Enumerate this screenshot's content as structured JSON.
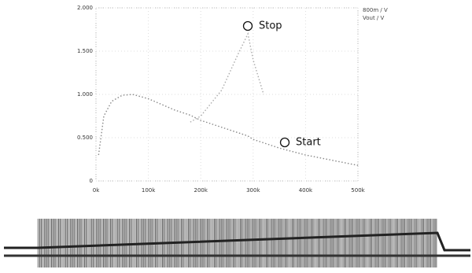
{
  "chart_data": {
    "type": "line",
    "x": [
      5000,
      15000,
      30000,
      50000,
      70000,
      100000,
      150000,
      180000,
      200000,
      240000,
      270000,
      290000,
      300000,
      320000,
      350000,
      400000,
      450000,
      500000
    ],
    "series": [
      {
        "name": "800m / V",
        "color": "#888888",
        "values": [
          0.3,
          0.75,
          0.92,
          0.99,
          1.0,
          0.95,
          0.82,
          0.76,
          0.7,
          0.62,
          0.56,
          0.52,
          0.48,
          0.44,
          0.38,
          0.3,
          0.24,
          0.18
        ]
      },
      {
        "name": "Vout / V",
        "color": "#aaaaaa",
        "values": [
          null,
          null,
          null,
          null,
          null,
          null,
          null,
          0.68,
          0.75,
          1.05,
          1.45,
          1.7,
          1.4,
          1.0,
          null,
          null,
          null,
          null
        ]
      }
    ],
    "annotations": [
      "Stop",
      "Start"
    ],
    "xlim": [
      0,
      500000
    ],
    "xticks": [
      {
        "value": 0,
        "label": "0k"
      },
      {
        "value": 100000,
        "label": "100k"
      },
      {
        "value": 200000,
        "label": "200k"
      },
      {
        "value": 300000,
        "label": "300k"
      },
      {
        "value": 400000,
        "label": "400k"
      },
      {
        "value": 500000,
        "label": "500k"
      }
    ],
    "ylim": [
      0,
      2
    ],
    "yticks": [
      0,
      {
        "value": 0.5,
        "label": "0.500"
      },
      {
        "value": 1,
        "label": "1.000"
      },
      {
        "value": 1.5,
        "label": "1.500"
      },
      {
        "value": 2,
        "label": "2.000"
      }
    ],
    "grid": true
  }
}
